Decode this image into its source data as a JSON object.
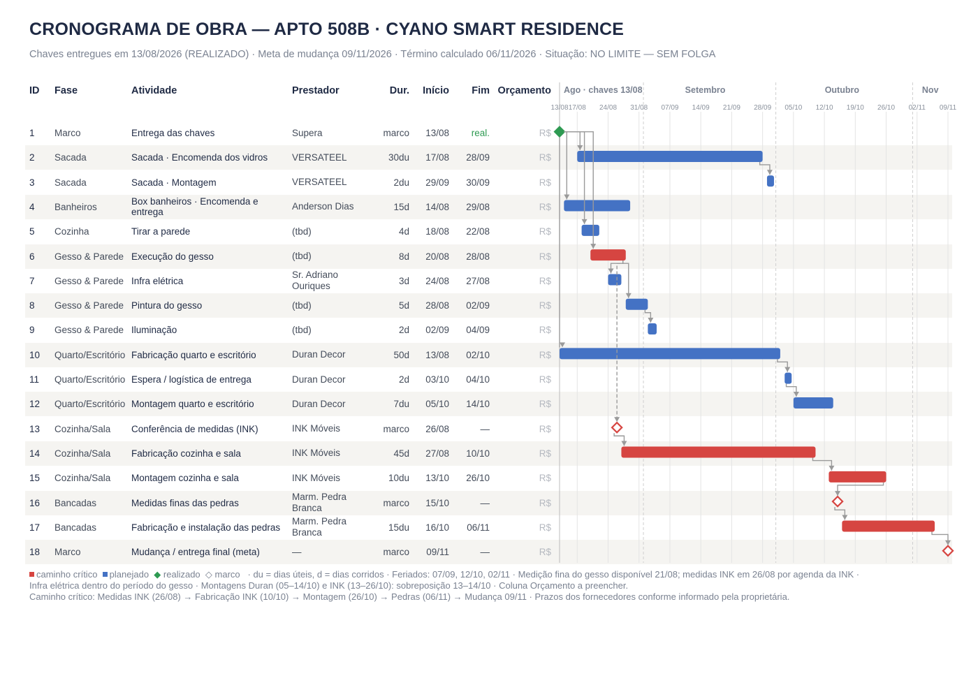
{
  "title": "CRONOGRAMA DE OBRA — APTO 508B · CYANO SMART RESIDENCE",
  "subtitle": "Chaves entregues em 13/08/2026 (REALIZADO)  ·  Meta de mudança 09/11/2026  ·  Término calculado 06/11/2026  ·  Situação: NO LIMITE — SEM FOLGA",
  "columns": {
    "id": "ID",
    "fase": "Fase",
    "atividade": "Atividade",
    "prestador": "Prestador",
    "dur": "Dur.",
    "inicio": "Início",
    "fim": "Fim",
    "orcamento": "Orçamento"
  },
  "colors": {
    "critical": "#d64541",
    "planned": "#4472c4",
    "done": "#2e9a52",
    "milestone": "#d64541",
    "grid": "#e4e4e4",
    "month_line": "#cfcfcf",
    "dep": "#9a9a9a"
  },
  "chart_data": {
    "type": "gantt",
    "x_axis": {
      "months": [
        "Ago · chaves 13/08",
        "Setembro",
        "Outubro",
        "Nov"
      ],
      "ticks": [
        "13/08",
        "17/08",
        "24/08",
        "31/08",
        "07/09",
        "14/09",
        "21/09",
        "28/09",
        "05/10",
        "12/10",
        "19/10",
        "26/10",
        "02/11",
        "09/11"
      ],
      "start": "2026-08-13",
      "end": "2026-11-09"
    },
    "tasks": [
      {
        "id": "1",
        "fase": "Marco",
        "atividade": "Entrega das chaves",
        "prestador": "Supera",
        "dur": "marco",
        "inicio": "13/08",
        "fim": "real.",
        "orcamento": "R$",
        "kind": "done",
        "start": "2026-08-13",
        "end": "2026-08-13",
        "deps": []
      },
      {
        "id": "2",
        "fase": "Sacada",
        "atividade": "Sacada · Encomenda dos vidros",
        "prestador": "VERSATEEL",
        "dur": "30du",
        "inicio": "17/08",
        "fim": "28/09",
        "orcamento": "R$",
        "kind": "planned",
        "start": "2026-08-17",
        "end": "2026-09-28",
        "deps": [
          "1"
        ]
      },
      {
        "id": "3",
        "fase": "Sacada",
        "atividade": "Sacada · Montagem",
        "prestador": "VERSATEEL",
        "dur": "2du",
        "inicio": "29/09",
        "fim": "30/09",
        "orcamento": "R$",
        "kind": "planned",
        "start": "2026-09-29",
        "end": "2026-09-30",
        "deps": [
          "2"
        ]
      },
      {
        "id": "4",
        "fase": "Banheiros",
        "atividade": "Box banheiros · Encomenda e entrega",
        "prestador": "Anderson Dias",
        "dur": "15d",
        "inicio": "14/08",
        "fim": "29/08",
        "orcamento": "R$",
        "kind": "planned",
        "start": "2026-08-14",
        "end": "2026-08-29",
        "deps": [
          "1"
        ]
      },
      {
        "id": "5",
        "fase": "Cozinha",
        "atividade": "Tirar a parede",
        "prestador": "(tbd)",
        "dur": "4d",
        "inicio": "18/08",
        "fim": "22/08",
        "orcamento": "R$",
        "kind": "planned",
        "start": "2026-08-18",
        "end": "2026-08-22",
        "deps": [
          "1"
        ]
      },
      {
        "id": "6",
        "fase": "Gesso & Parede",
        "atividade": "Execução do gesso",
        "prestador": "(tbd)",
        "dur": "8d",
        "inicio": "20/08",
        "fim": "28/08",
        "orcamento": "R$",
        "kind": "critical",
        "start": "2026-08-20",
        "end": "2026-08-28",
        "deps": [
          "1"
        ]
      },
      {
        "id": "7",
        "fase": "Gesso & Parede",
        "atividade": "Infra elétrica",
        "prestador": "Sr. Adriano Ouriques",
        "dur": "3d",
        "inicio": "24/08",
        "fim": "27/08",
        "orcamento": "R$",
        "kind": "planned",
        "start": "2026-08-24",
        "end": "2026-08-27",
        "deps": [
          "6"
        ]
      },
      {
        "id": "8",
        "fase": "Gesso & Parede",
        "atividade": "Pintura do gesso",
        "prestador": "(tbd)",
        "dur": "5d",
        "inicio": "28/08",
        "fim": "02/09",
        "orcamento": "R$",
        "kind": "planned",
        "start": "2026-08-28",
        "end": "2026-09-02",
        "deps": [
          "6"
        ]
      },
      {
        "id": "9",
        "fase": "Gesso & Parede",
        "atividade": "Iluminação",
        "prestador": "(tbd)",
        "dur": "2d",
        "inicio": "02/09",
        "fim": "04/09",
        "orcamento": "R$",
        "kind": "planned",
        "start": "2026-09-02",
        "end": "2026-09-04",
        "deps": [
          "8"
        ]
      },
      {
        "id": "10",
        "fase": "Quarto/Escritório",
        "atividade": "Fabricação quarto e escritório",
        "prestador": "Duran Decor",
        "dur": "50d",
        "inicio": "13/08",
        "fim": "02/10",
        "orcamento": "R$",
        "kind": "planned",
        "start": "2026-08-13",
        "end": "2026-10-02",
        "deps": [
          "1"
        ]
      },
      {
        "id": "11",
        "fase": "Quarto/Escritório",
        "atividade": "Espera / logística de entrega",
        "prestador": "Duran Decor",
        "dur": "2d",
        "inicio": "03/10",
        "fim": "04/10",
        "orcamento": "R$",
        "kind": "planned",
        "start": "2026-10-03",
        "end": "2026-10-04",
        "deps": [
          "10"
        ]
      },
      {
        "id": "12",
        "fase": "Quarto/Escritório",
        "atividade": "Montagem quarto e escritório",
        "prestador": "Duran Decor",
        "dur": "7du",
        "inicio": "05/10",
        "fim": "14/10",
        "orcamento": "R$",
        "kind": "planned",
        "start": "2026-10-05",
        "end": "2026-10-14",
        "deps": [
          "11"
        ]
      },
      {
        "id": "13",
        "fase": "Cozinha/Sala",
        "atividade": "Conferência de medidas (INK)",
        "prestador": "INK Móveis",
        "dur": "marco",
        "inicio": "26/08",
        "fim": "—",
        "orcamento": "R$",
        "kind": "milestone",
        "start": "2026-08-26",
        "end": "2026-08-26",
        "deps": [
          "6"
        ]
      },
      {
        "id": "14",
        "fase": "Cozinha/Sala",
        "atividade": "Fabricação cozinha e sala",
        "prestador": "INK Móveis",
        "dur": "45d",
        "inicio": "27/08",
        "fim": "10/10",
        "orcamento": "R$",
        "kind": "critical",
        "start": "2026-08-27",
        "end": "2026-10-10",
        "deps": [
          "13"
        ]
      },
      {
        "id": "15",
        "fase": "Cozinha/Sala",
        "atividade": "Montagem cozinha e sala",
        "prestador": "INK Móveis",
        "dur": "10du",
        "inicio": "13/10",
        "fim": "26/10",
        "orcamento": "R$",
        "kind": "critical",
        "start": "2026-10-13",
        "end": "2026-10-26",
        "deps": [
          "14"
        ]
      },
      {
        "id": "16",
        "fase": "Bancadas",
        "atividade": "Medidas finas das pedras",
        "prestador": "Marm. Pedra Branca",
        "dur": "marco",
        "inicio": "15/10",
        "fim": "—",
        "orcamento": "R$",
        "kind": "milestone",
        "start": "2026-10-15",
        "end": "2026-10-15",
        "deps": [
          "15"
        ]
      },
      {
        "id": "17",
        "fase": "Bancadas",
        "atividade": "Fabricação e instalação das pedras",
        "prestador": "Marm. Pedra Branca",
        "dur": "15du",
        "inicio": "16/10",
        "fim": "06/11",
        "orcamento": "R$",
        "kind": "critical",
        "start": "2026-10-16",
        "end": "2026-11-06",
        "deps": [
          "16"
        ]
      },
      {
        "id": "18",
        "fase": "Marco",
        "atividade": "Mudança / entrega final (meta)",
        "prestador": "—",
        "dur": "marco",
        "inicio": "09/11",
        "fim": "—",
        "orcamento": "R$",
        "kind": "milestone",
        "start": "2026-11-09",
        "end": "2026-11-09",
        "deps": [
          "17"
        ]
      }
    ]
  },
  "legend": {
    "critical": "caminho crítico",
    "planned": "planejado",
    "done": "realizado",
    "milestone": "marco",
    "line1_rest": "·   du = dias úteis, d = dias corridos   ·   Feriados: 07/09, 12/10, 02/11   ·   Medição fina do gesso disponível 21/08; medidas INK em 26/08 por agenda da INK   ·",
    "line2": "Infra elétrica dentro do período do gesso   ·   Montagens Duran (05–14/10) e INK (13–26/10): sobreposição 13–14/10   ·   Coluna Orçamento a preencher.",
    "line3": "Caminho crítico: Medidas INK (26/08) → Fabricação INK (10/10) → Montagem (26/10) → Pedras (06/11) → Mudança 09/11  ·  Prazos dos fornecedores conforme informado pela proprietária."
  }
}
